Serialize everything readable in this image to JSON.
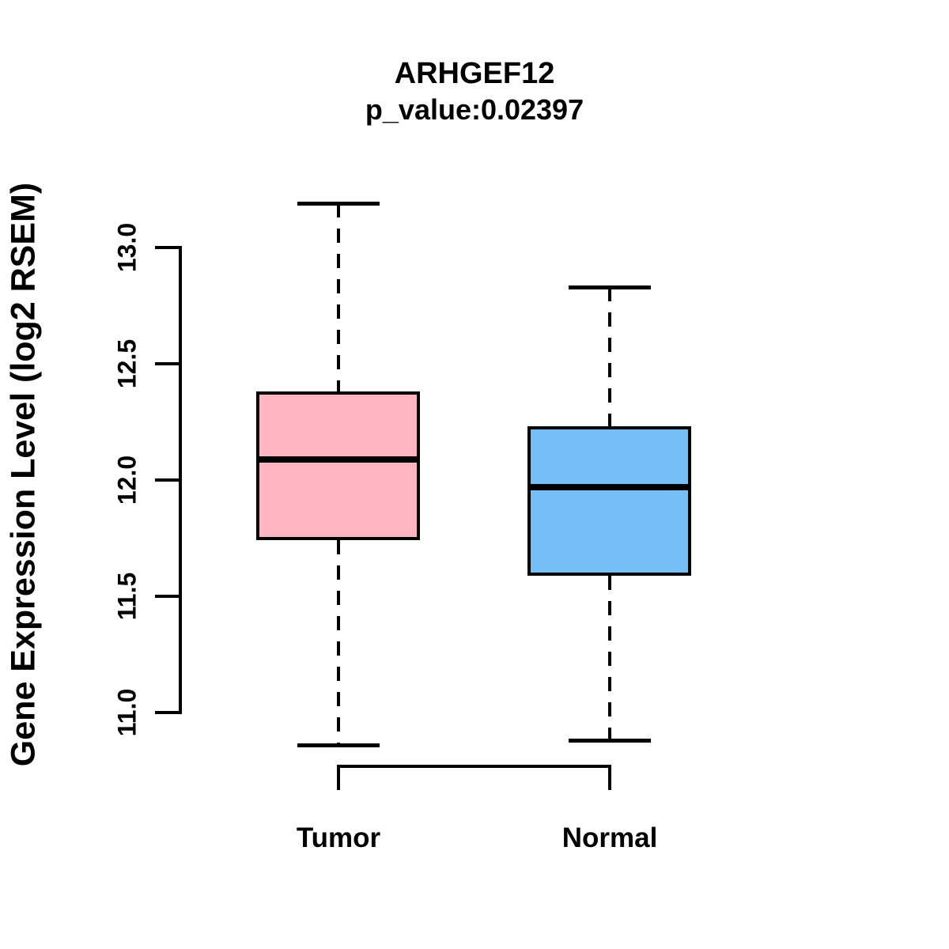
{
  "chart_data": {
    "type": "boxplot",
    "title": "ARHGEF12",
    "subtitle": "p_value:0.02397",
    "gene": "ARHGEF12",
    "p_value": 0.02397,
    "ylabel": "Gene Expression Level (log2 RSEM)",
    "xlabel": "",
    "categories": [
      "Tumor",
      "Normal"
    ],
    "yticks": [
      11.0,
      11.5,
      12.0,
      12.5,
      13.0
    ],
    "ylim": [
      10.8,
      13.25
    ],
    "grid": false,
    "legend": "none",
    "line_color": "#000000",
    "background_color": "#ffffff",
    "series": [
      {
        "name": "Tumor",
        "color": "#FFB6C1",
        "whisker_low": 10.86,
        "q1": 11.74,
        "median": 12.09,
        "q3": 12.38,
        "whisker_high": 13.19
      },
      {
        "name": "Normal",
        "color": "#74BDF5",
        "whisker_low": 10.88,
        "q1": 11.59,
        "median": 11.97,
        "q3": 12.23,
        "whisker_high": 12.83
      }
    ]
  }
}
